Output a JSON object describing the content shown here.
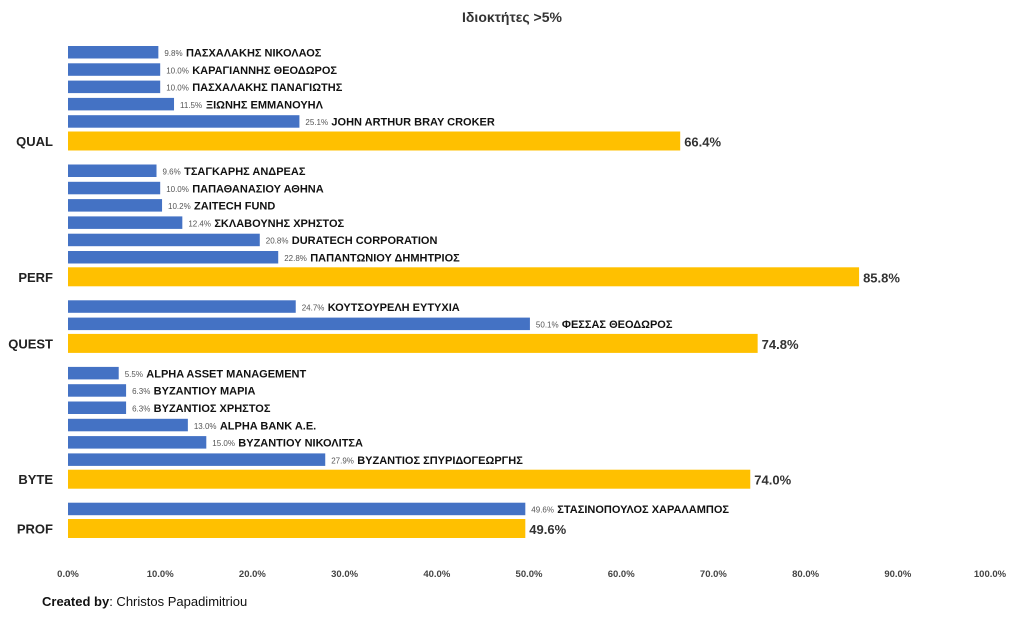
{
  "chart_data": {
    "type": "bar",
    "orientation": "horizontal",
    "title": "Ιδιοκτήτες >5%",
    "xlim": [
      0,
      100
    ],
    "x_ticks": [
      "0.0%",
      "10.0%",
      "20.0%",
      "30.0%",
      "40.0%",
      "50.0%",
      "60.0%",
      "70.0%",
      "80.0%",
      "90.0%",
      "100.0%"
    ],
    "grid": false,
    "colors": {
      "owner": "#4472C4",
      "total": "#FFC000"
    },
    "groups": [
      {
        "category": "QUAL",
        "owners": [
          {
            "name": "ΠΑΣΧΑΛΑΚΗΣ ΝΙΚΟΛΑΟΣ",
            "value": 9.8,
            "label": "9.8%"
          },
          {
            "name": "ΚΑΡΑΓΙΑΝΝΗΣ ΘΕΟΔΩΡΟΣ",
            "value": 10.0,
            "label": "10.0%"
          },
          {
            "name": "ΠΑΣΧΑΛΑΚΗΣ ΠΑΝΑΓΙΩΤΗΣ",
            "value": 10.0,
            "label": "10.0%"
          },
          {
            "name": "ΞΙΩΝΗΣ ΕΜΜΑΝΟΥΗΛ",
            "value": 11.5,
            "label": "11.5%"
          },
          {
            "name": "JOHN ARTHUR BRAY CROKER",
            "value": 25.1,
            "label": "25.1%"
          }
        ],
        "total": {
          "value": 66.4,
          "label": "66.4%"
        }
      },
      {
        "category": "PERF",
        "owners": [
          {
            "name": "ΤΣΑΓΚΑΡΗΣ ΑΝΔΡΕΑΣ",
            "value": 9.6,
            "label": "9.6%"
          },
          {
            "name": "ΠΑΠΑΘΑΝΑΣΙΟΥ ΑΘΗΝΑ",
            "value": 10.0,
            "label": "10.0%"
          },
          {
            "name": "ZAITECH FUND",
            "value": 10.2,
            "label": "10.2%"
          },
          {
            "name": "ΣΚΛΑΒΟΥΝΗΣ ΧΡΗΣΤΟΣ",
            "value": 12.4,
            "label": "12.4%"
          },
          {
            "name": "DURATECH CORPORATION",
            "value": 20.8,
            "label": "20.8%"
          },
          {
            "name": "ΠΑΠΑΝΤΩΝΙΟΥ ΔΗΜΗΤΡΙΟΣ",
            "value": 22.8,
            "label": "22.8%"
          }
        ],
        "total": {
          "value": 85.8,
          "label": "85.8%"
        }
      },
      {
        "category": "QUEST",
        "owners": [
          {
            "name": "ΚΟΥΤΣΟΥΡΕΛΗ ΕΥΤΥΧΙΑ",
            "value": 24.7,
            "label": "24.7%"
          },
          {
            "name": "ΦΕΣΣΑΣ ΘΕΟΔΩΡΟΣ",
            "value": 50.1,
            "label": "50.1%"
          }
        ],
        "total": {
          "value": 74.8,
          "label": "74.8%"
        }
      },
      {
        "category": "BYTE",
        "owners": [
          {
            "name": "ALPHA ASSET MANAGEMENT",
            "value": 5.5,
            "label": "5.5%"
          },
          {
            "name": "ΒΥΖΑΝΤΙΟΥ ΜΑΡΙΑ",
            "value": 6.3,
            "label": "6.3%"
          },
          {
            "name": "ΒΥΖΑΝΤΙΟΣ ΧΡΗΣΤΟΣ",
            "value": 6.3,
            "label": "6.3%"
          },
          {
            "name": "ALPHA BANK A.E.",
            "value": 13.0,
            "label": "13.0%"
          },
          {
            "name": "ΒΥΖΑΝΤΙΟΥ ΝΙΚΟΛΙΤΣΑ",
            "value": 15.0,
            "label": "15.0%"
          },
          {
            "name": "ΒΥΖΑΝΤΙΟΣ ΣΠΥΡΙΔΟΓΕΩΡΓΗΣ",
            "value": 27.9,
            "label": "27.9%"
          }
        ],
        "total": {
          "value": 74.0,
          "label": "74.0%"
        }
      },
      {
        "category": "PROF",
        "owners": [
          {
            "name": "ΣΤΑΣΙΝΟΠΟΥΛΟΣ ΧΑΡΑΛΑΜΠΟΣ",
            "value": 49.6,
            "label": "49.6%"
          }
        ],
        "total": {
          "value": 49.6,
          "label": "49.6%"
        }
      }
    ]
  },
  "footer": {
    "created_label": "Created by",
    "author": ": Christos Papadimitriou"
  }
}
